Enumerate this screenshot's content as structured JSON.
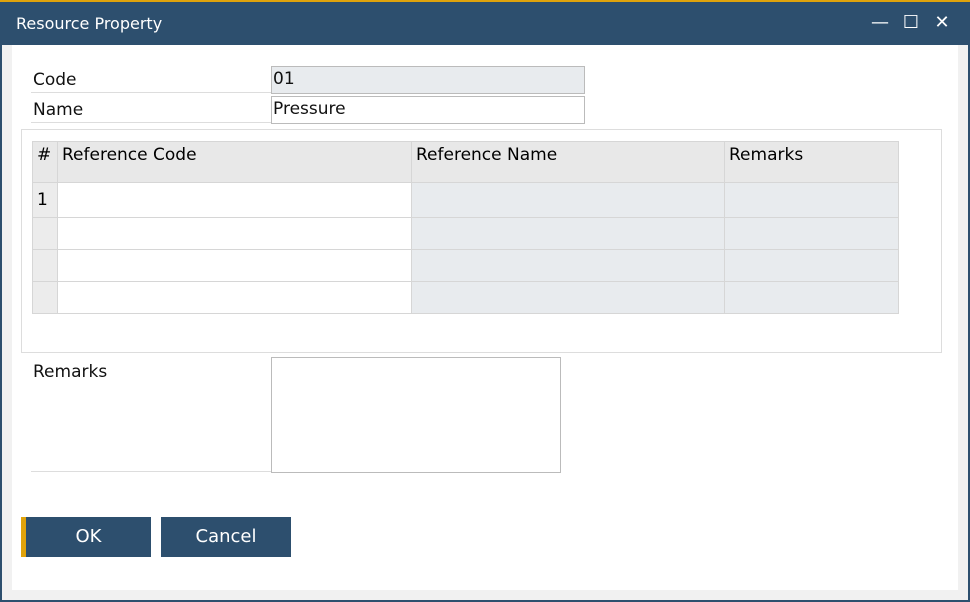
{
  "window": {
    "title": "Resource Property",
    "accent": "#e0a30b",
    "bar_color": "#2d4f6e"
  },
  "form": {
    "code_label": "Code",
    "code_value": "01",
    "name_label": "Name",
    "name_value": "Pressure",
    "remarks_label": "Remarks",
    "remarks_value": ""
  },
  "grid": {
    "columns": [
      "#",
      "Reference Code",
      "Reference Name",
      "Remarks"
    ],
    "rows": [
      [
        "1",
        "",
        "",
        ""
      ],
      [
        "",
        "",
        "",
        ""
      ],
      [
        "",
        "",
        "",
        ""
      ],
      [
        "",
        "",
        "",
        ""
      ]
    ]
  },
  "buttons": {
    "ok": "OK",
    "cancel": "Cancel"
  }
}
